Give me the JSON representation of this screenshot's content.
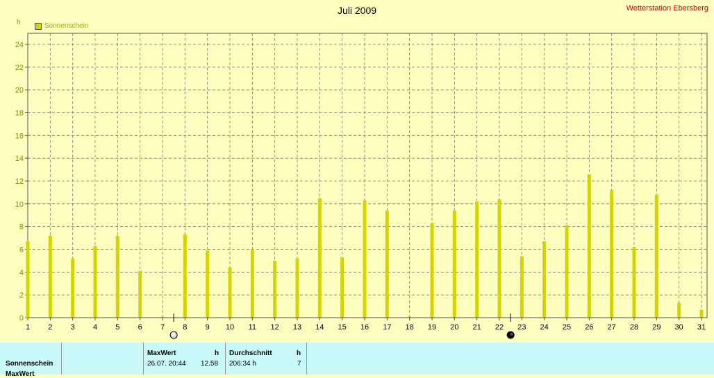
{
  "header": {
    "title": "Juli 2009",
    "station": "Wetterstation Ebersberg",
    "unit": "h"
  },
  "legend": {
    "label": "Sonnenschein",
    "color": "#d4d400"
  },
  "chart_data": {
    "type": "bar",
    "title": "Juli 2009",
    "ylabel": "h",
    "ylim": [
      0,
      24
    ],
    "y_ticks": [
      0,
      2,
      4,
      6,
      8,
      10,
      12,
      14,
      16,
      18,
      20,
      22,
      24
    ],
    "categories": [
      "1",
      "2",
      "3",
      "4",
      "5",
      "6",
      "7",
      "8",
      "9",
      "10",
      "11",
      "12",
      "13",
      "14",
      "15",
      "16",
      "17",
      "18",
      "19",
      "20",
      "21",
      "22",
      "23",
      "24",
      "25",
      "26",
      "27",
      "28",
      "29",
      "30",
      "31"
    ],
    "series": [
      {
        "name": "Sonnenschein",
        "color": "#d4d400",
        "values": [
          6.7,
          7.2,
          5.2,
          6.3,
          7.2,
          4.1,
          0.1,
          7.3,
          5.9,
          4.4,
          6.0,
          5.0,
          5.2,
          10.5,
          5.3,
          10.3,
          9.4,
          0.1,
          8.3,
          9.4,
          10.2,
          10.4,
          5.4,
          6.7,
          8.1,
          12.58,
          11.2,
          6.2,
          10.8,
          1.3,
          0.7
        ]
      }
    ],
    "grid": true,
    "moon_markers": [
      {
        "after_day": 7,
        "phase": "full-moon"
      },
      {
        "after_day": 22,
        "phase": "new-moon"
      }
    ]
  },
  "table": {
    "row_label": "Sonnenschein",
    "row_label_cut": "MaxWert",
    "max_header": "MaxWert",
    "max_unit": "h",
    "max_datetime": "26.07.  20:44",
    "max_value": "12.58",
    "avg_header": "Durchschnitt",
    "avg_unit": "h",
    "avg_total": "206:34 h",
    "avg_value": "7"
  }
}
